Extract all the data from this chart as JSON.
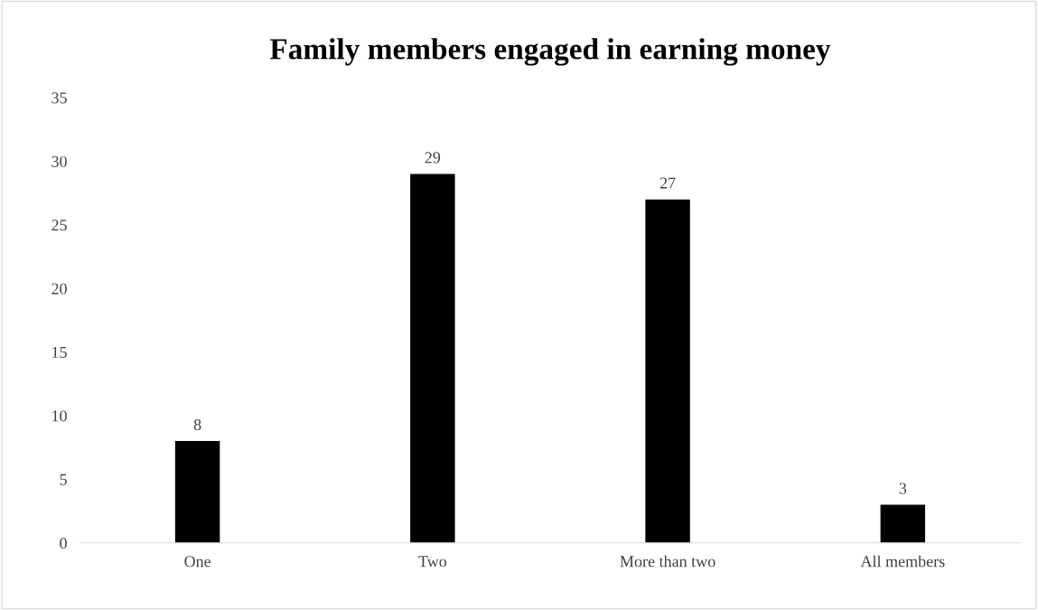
{
  "chart_data": {
    "type": "bar",
    "title": "Family members engaged in earning money",
    "categories": [
      "One",
      "Two",
      "More than two",
      "All members"
    ],
    "values": [
      8,
      29,
      27,
      3
    ],
    "color": "#000000",
    "ylim": [
      0,
      35
    ],
    "yticks": [
      0,
      5,
      10,
      15,
      20,
      25,
      30,
      35
    ],
    "data_labels": true,
    "grid": false,
    "legend": false
  }
}
